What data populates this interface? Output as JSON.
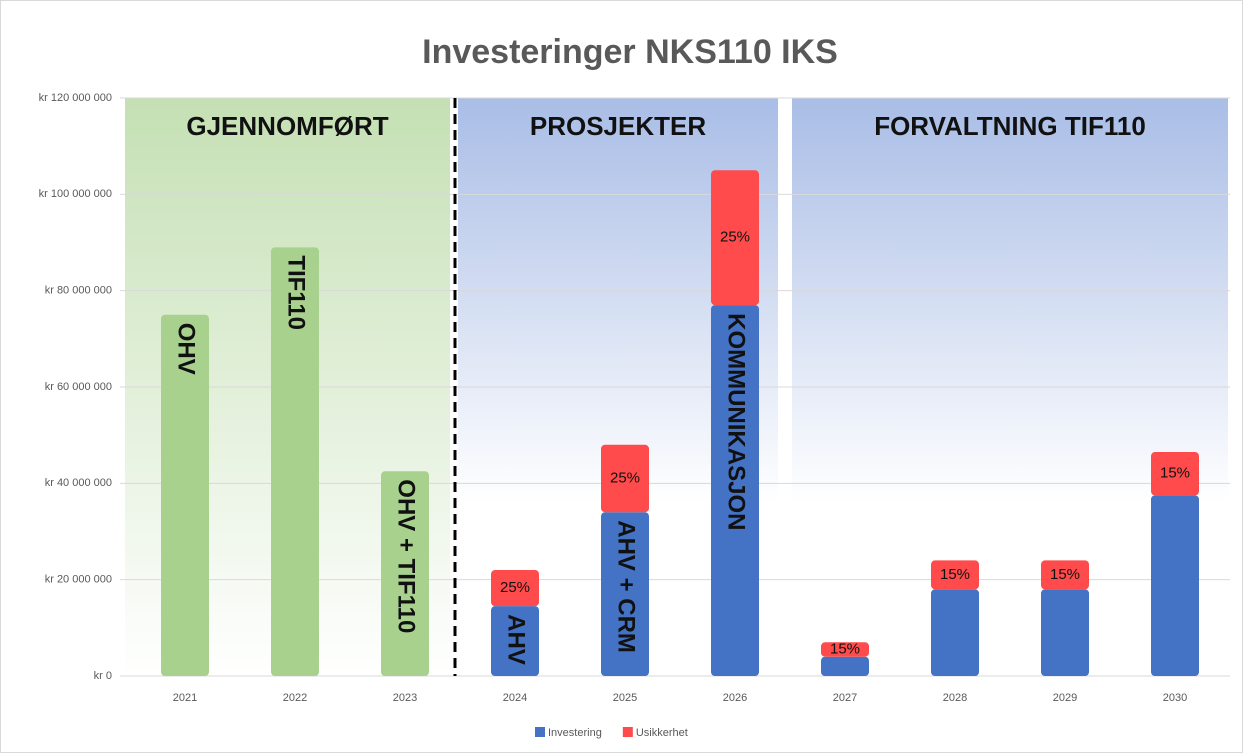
{
  "chart_data": {
    "type": "stacked_bar",
    "title": "Investeringer NKS110 IKS",
    "categories": [
      "2021",
      "2022",
      "2023",
      "2024",
      "2025",
      "2026",
      "2027",
      "2028",
      "2029",
      "2030"
    ],
    "series": [
      {
        "name": "Investering",
        "color": "#4472c4",
        "colors": [
          "#a9d18e",
          "#a9d18e",
          "#a9d18e",
          "#4472c4",
          "#4472c4",
          "#4472c4",
          "#4472c4",
          "#4472c4",
          "#4472c4",
          "#4472c4"
        ],
        "values": [
          75000000,
          89000000,
          42500000,
          14500000,
          34000000,
          77000000,
          4000000,
          18000000,
          18000000,
          37500000
        ],
        "segment_labels": [
          "OHV",
          "TIF110",
          "OHV + TIF110",
          "AHV",
          "AHV + CRM",
          "KOMMUNIKASJON",
          null,
          null,
          null,
          null
        ]
      },
      {
        "name": "Usikkerhet",
        "color": "#ff4b4b",
        "values": [
          null,
          null,
          null,
          7500000,
          14000000,
          28000000,
          3000000,
          6000000,
          6000000,
          9000000
        ],
        "segment_labels": [
          null,
          null,
          null,
          "25%",
          "25%",
          "25%",
          "15%",
          "15%",
          "15%",
          "15%"
        ]
      }
    ],
    "sections": [
      "GJENNOMFØRT",
      "PROSJEKTER",
      "FORVALTNING TIF110"
    ],
    "ylim": [
      0,
      120000000
    ],
    "yticks": [
      {
        "value": 0,
        "label": "kr 0"
      },
      {
        "value": 20000000,
        "label": "kr 20 000 000"
      },
      {
        "value": 40000000,
        "label": "kr 40 000 000"
      },
      {
        "value": 60000000,
        "label": "kr 60 000 000"
      },
      {
        "value": 80000000,
        "label": "kr 80 000 000"
      },
      {
        "value": 100000000,
        "label": "kr 100 000 000"
      },
      {
        "value": 120000000,
        "label": "kr 120 000 000"
      }
    ],
    "grid": true,
    "legend": "bottom"
  }
}
